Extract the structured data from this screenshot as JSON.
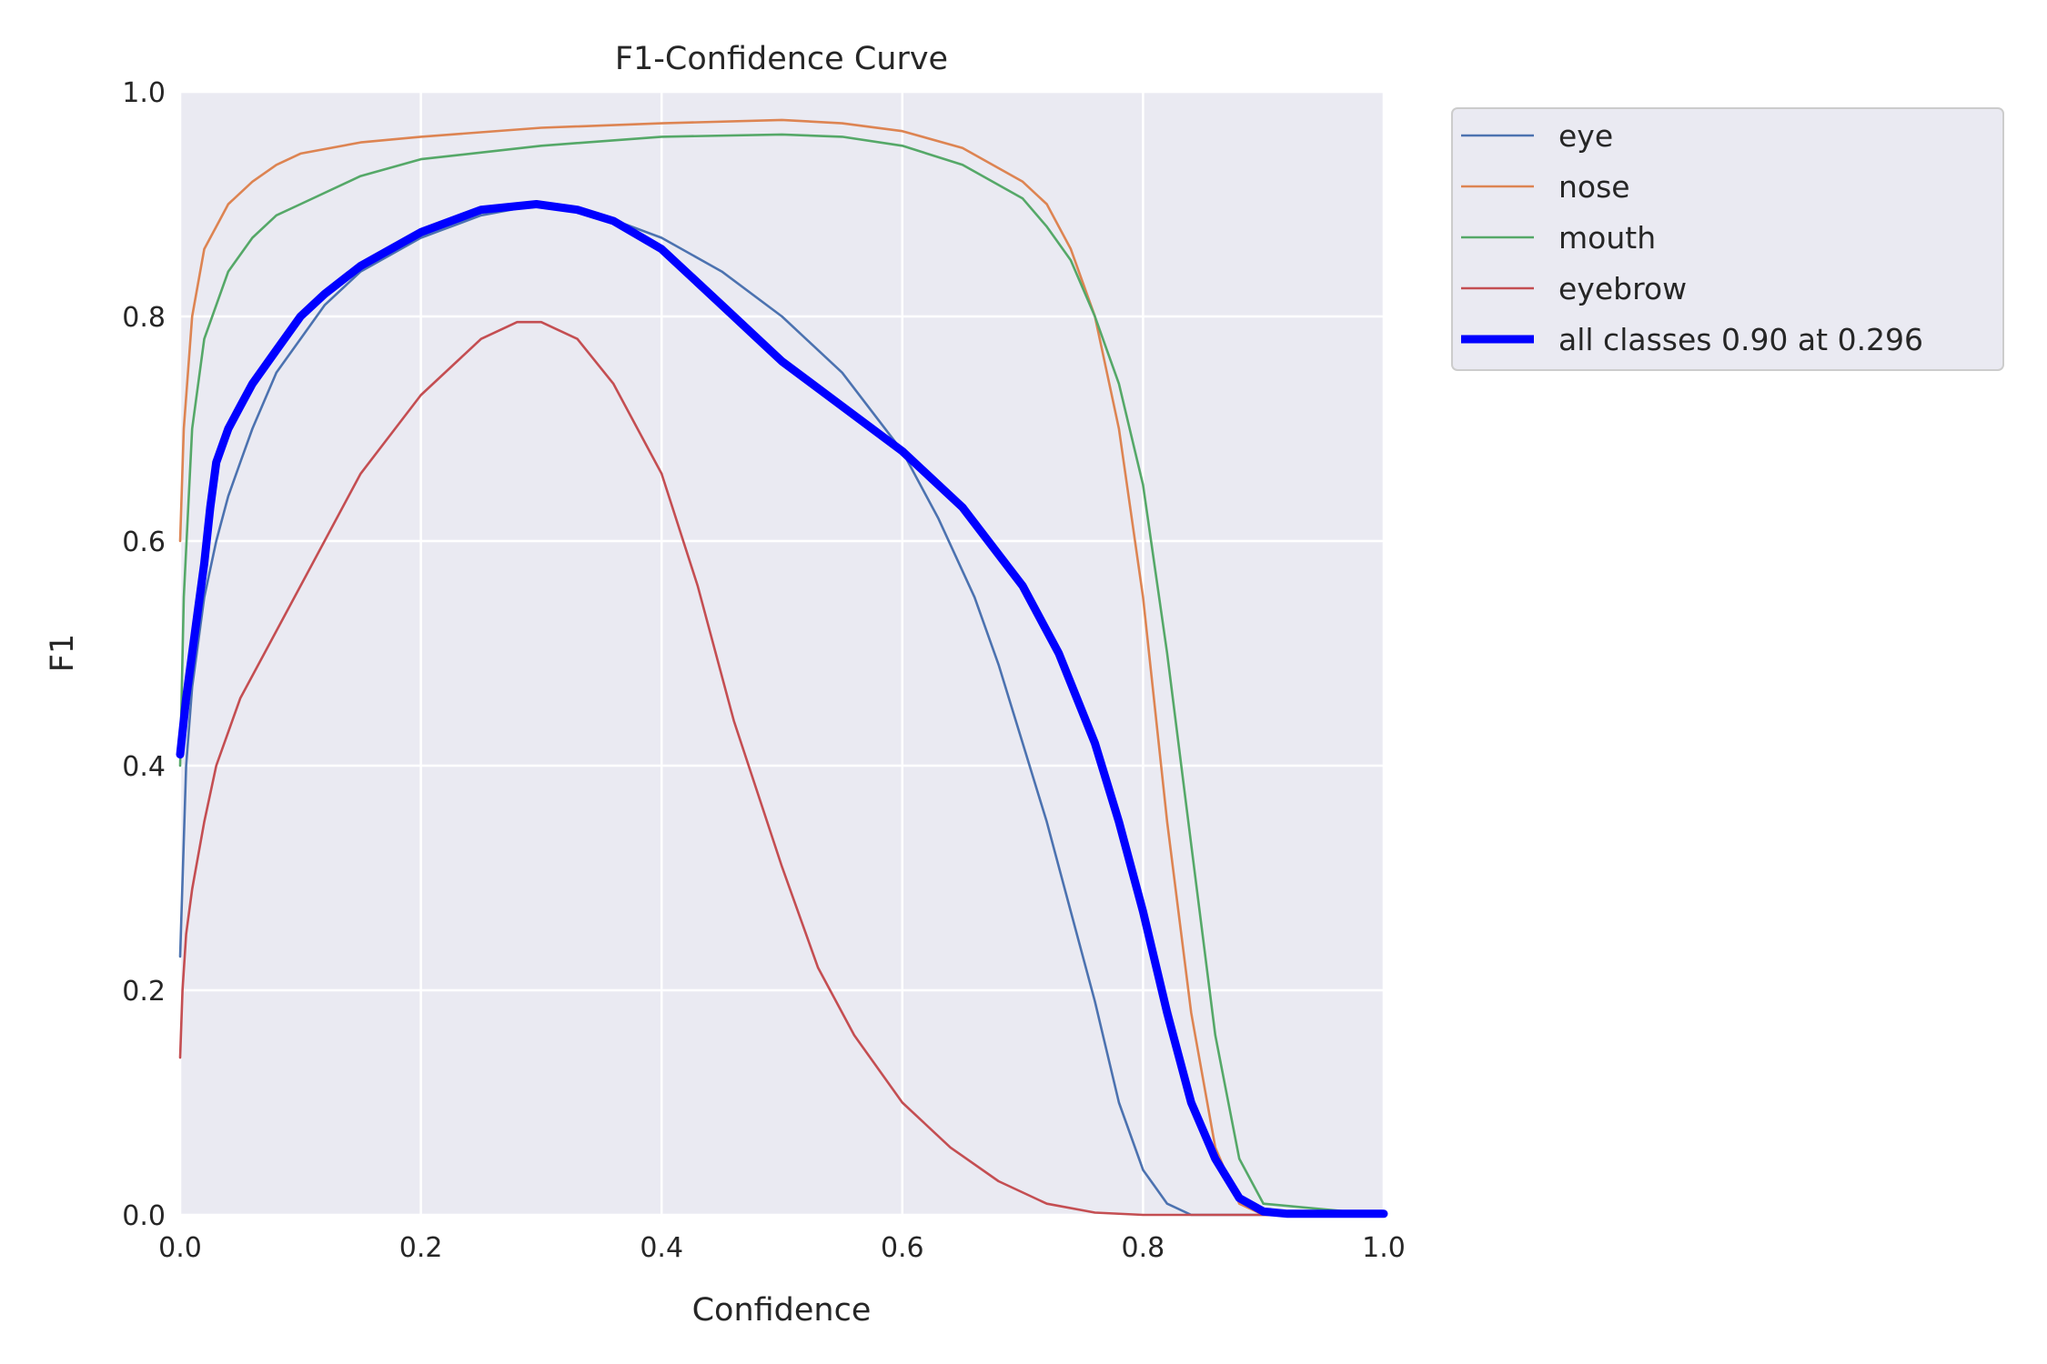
{
  "chart_data": {
    "type": "line",
    "title": "F1-Confidence Curve",
    "xlabel": "Confidence",
    "ylabel": "F1",
    "xlim": [
      0,
      1
    ],
    "ylim": [
      0,
      1
    ],
    "xticks": [
      "0.0",
      "0.2",
      "0.4",
      "0.6",
      "0.8",
      "1.0"
    ],
    "yticks": [
      "0.0",
      "0.2",
      "0.4",
      "0.6",
      "0.8",
      "1.0"
    ],
    "grid": true,
    "legend_position": "outside-upper-right",
    "series": [
      {
        "name": "eye",
        "color": "#4c72b0",
        "width": "thin",
        "x": [
          0,
          0.005,
          0.01,
          0.02,
          0.03,
          0.04,
          0.05,
          0.06,
          0.08,
          0.1,
          0.12,
          0.15,
          0.2,
          0.25,
          0.3,
          0.35,
          0.4,
          0.45,
          0.5,
          0.55,
          0.6,
          0.63,
          0.66,
          0.68,
          0.7,
          0.72,
          0.74,
          0.76,
          0.78,
          0.8,
          0.82,
          0.84,
          1.0
        ],
        "y": [
          0.23,
          0.4,
          0.47,
          0.55,
          0.6,
          0.64,
          0.67,
          0.7,
          0.75,
          0.78,
          0.81,
          0.84,
          0.87,
          0.89,
          0.9,
          0.89,
          0.87,
          0.84,
          0.8,
          0.75,
          0.68,
          0.62,
          0.55,
          0.49,
          0.42,
          0.35,
          0.27,
          0.19,
          0.1,
          0.04,
          0.01,
          0.0,
          0.0
        ]
      },
      {
        "name": "nose",
        "color": "#dd8452",
        "width": "thin",
        "x": [
          0,
          0.003,
          0.01,
          0.02,
          0.03,
          0.04,
          0.06,
          0.08,
          0.1,
          0.15,
          0.2,
          0.3,
          0.4,
          0.5,
          0.55,
          0.6,
          0.65,
          0.7,
          0.72,
          0.74,
          0.76,
          0.78,
          0.8,
          0.82,
          0.84,
          0.86,
          0.88,
          0.9,
          1.0
        ],
        "y": [
          0.6,
          0.7,
          0.8,
          0.86,
          0.88,
          0.9,
          0.92,
          0.935,
          0.945,
          0.955,
          0.96,
          0.968,
          0.972,
          0.975,
          0.972,
          0.965,
          0.95,
          0.92,
          0.9,
          0.86,
          0.8,
          0.7,
          0.55,
          0.35,
          0.18,
          0.06,
          0.01,
          0.0,
          0.0
        ]
      },
      {
        "name": "mouth",
        "color": "#55a868",
        "width": "thin",
        "x": [
          0,
          0.003,
          0.01,
          0.02,
          0.03,
          0.04,
          0.06,
          0.08,
          0.1,
          0.15,
          0.2,
          0.3,
          0.4,
          0.5,
          0.55,
          0.6,
          0.65,
          0.7,
          0.72,
          0.74,
          0.76,
          0.78,
          0.8,
          0.82,
          0.84,
          0.86,
          0.88,
          0.9,
          1.0
        ],
        "y": [
          0.4,
          0.55,
          0.7,
          0.78,
          0.81,
          0.84,
          0.87,
          0.89,
          0.9,
          0.925,
          0.94,
          0.952,
          0.96,
          0.962,
          0.96,
          0.952,
          0.935,
          0.905,
          0.88,
          0.85,
          0.8,
          0.74,
          0.65,
          0.5,
          0.33,
          0.16,
          0.05,
          0.01,
          0.0
        ]
      },
      {
        "name": "eyebrow",
        "color": "#c44e52",
        "width": "thin",
        "x": [
          0,
          0.002,
          0.005,
          0.01,
          0.02,
          0.03,
          0.05,
          0.07,
          0.1,
          0.15,
          0.2,
          0.25,
          0.28,
          0.3,
          0.33,
          0.36,
          0.4,
          0.43,
          0.46,
          0.5,
          0.53,
          0.56,
          0.6,
          0.64,
          0.68,
          0.72,
          0.76,
          0.8,
          1.0
        ],
        "y": [
          0.14,
          0.2,
          0.25,
          0.29,
          0.35,
          0.4,
          0.46,
          0.5,
          0.56,
          0.66,
          0.73,
          0.78,
          0.795,
          0.795,
          0.78,
          0.74,
          0.66,
          0.56,
          0.44,
          0.31,
          0.22,
          0.16,
          0.1,
          0.06,
          0.03,
          0.01,
          0.002,
          0.0,
          0.0
        ]
      },
      {
        "name": "all classes 0.90 at 0.296",
        "color": "#0000ff",
        "width": "thick",
        "x": [
          0,
          0.005,
          0.01,
          0.015,
          0.02,
          0.025,
          0.03,
          0.04,
          0.05,
          0.06,
          0.08,
          0.1,
          0.12,
          0.15,
          0.2,
          0.25,
          0.296,
          0.33,
          0.36,
          0.4,
          0.45,
          0.5,
          0.55,
          0.6,
          0.65,
          0.7,
          0.73,
          0.76,
          0.78,
          0.8,
          0.82,
          0.84,
          0.86,
          0.88,
          0.9,
          0.92,
          1.0
        ],
        "y": [
          0.41,
          0.46,
          0.5,
          0.54,
          0.58,
          0.63,
          0.67,
          0.7,
          0.72,
          0.74,
          0.77,
          0.8,
          0.82,
          0.845,
          0.875,
          0.895,
          0.9,
          0.895,
          0.885,
          0.86,
          0.81,
          0.76,
          0.72,
          0.68,
          0.63,
          0.56,
          0.5,
          0.42,
          0.35,
          0.27,
          0.18,
          0.1,
          0.05,
          0.015,
          0.003,
          0.001,
          0.001
        ]
      }
    ]
  }
}
